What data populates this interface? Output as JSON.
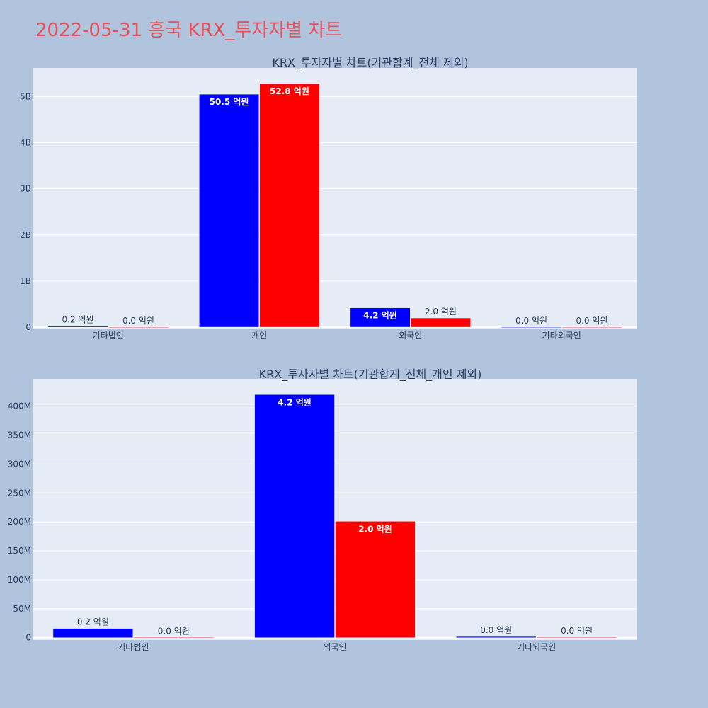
{
  "title": "2022-05-31 흥국 KRX_투자자별 차트",
  "colors": {
    "title": "#e8505b",
    "background": "#b0c4de",
    "plot_bg": "#e5ecf6",
    "series_blue": "#0000ff",
    "series_red": "#ff0000"
  },
  "chart_data": [
    {
      "type": "bar",
      "title": "KRX_투자자별 차트(기관합계_전체 제외)",
      "categories": [
        "기타법인",
        "개인",
        "외국인",
        "기타외국인"
      ],
      "series": [
        {
          "color": "#0000ff",
          "values": [
            20000000,
            5050000000,
            420000000,
            2000000
          ],
          "labels": [
            "0.2 억원",
            "50.5 억원",
            "4.2 억원",
            "0.0 억원"
          ]
        },
        {
          "color": "#ff0000",
          "values": [
            1000000,
            5280000000,
            200000000,
            1000000
          ],
          "labels": [
            "0.0 억원",
            "52.8 억원",
            "2.0 억원",
            "0.0 억원"
          ]
        }
      ],
      "yticks": [
        {
          "value": 0,
          "label": "0"
        },
        {
          "value": 1000000000,
          "label": "1B"
        },
        {
          "value": 2000000000,
          "label": "2B"
        },
        {
          "value": 3000000000,
          "label": "3B"
        },
        {
          "value": 4000000000,
          "label": "4B"
        },
        {
          "value": 5000000000,
          "label": "5B"
        }
      ],
      "ylim": [
        -30000000,
        5620000000
      ],
      "grid": true,
      "legend": "none"
    },
    {
      "type": "bar",
      "title": "KRX_투자자별 차트(기관합계_전체_개인 제외)",
      "categories": [
        "기타법인",
        "외국인",
        "기타외국인"
      ],
      "series": [
        {
          "color": "#0000ff",
          "values": [
            16000000,
            420000000,
            2000000
          ],
          "labels": [
            "0.2 억원",
            "4.2 억원",
            "0.0 억원"
          ]
        },
        {
          "color": "#ff0000",
          "values": [
            500000,
            201000000,
            1000000
          ],
          "labels": [
            "0.0 억원",
            "2.0 억원",
            "0.0 억원"
          ]
        }
      ],
      "yticks": [
        {
          "value": 0,
          "label": "0"
        },
        {
          "value": 50000000,
          "label": "50M"
        },
        {
          "value": 100000000,
          "label": "100M"
        },
        {
          "value": 150000000,
          "label": "150M"
        },
        {
          "value": 200000000,
          "label": "200M"
        },
        {
          "value": 250000000,
          "label": "250M"
        },
        {
          "value": 300000000,
          "label": "300M"
        },
        {
          "value": 350000000,
          "label": "350M"
        },
        {
          "value": 400000000,
          "label": "400M"
        }
      ],
      "ylim": [
        -4000000,
        446000000
      ],
      "grid": true,
      "legend": "none"
    }
  ]
}
